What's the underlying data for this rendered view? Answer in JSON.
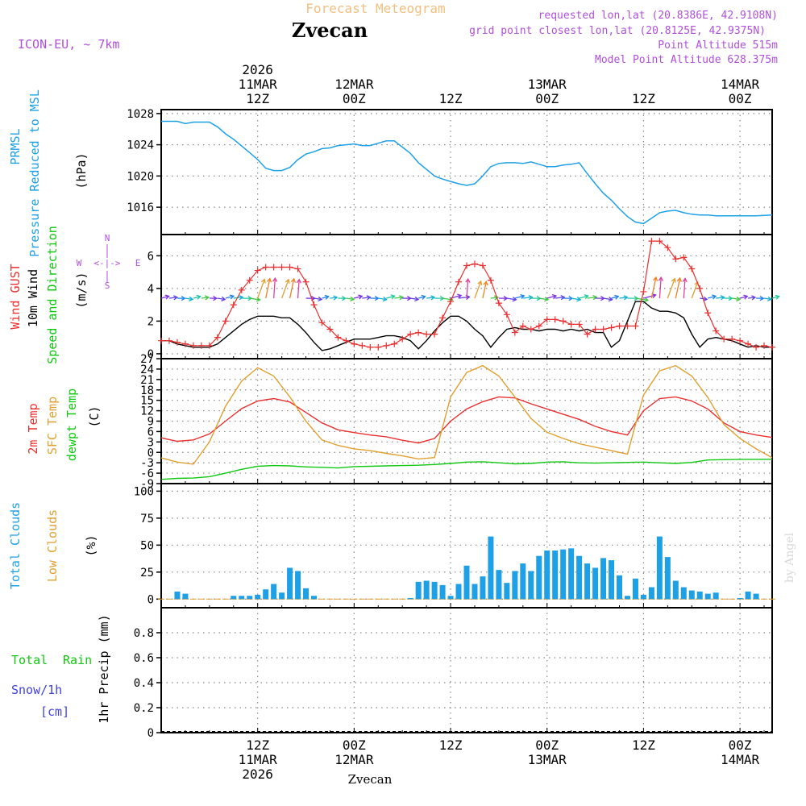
{
  "header": {
    "subtitle": "Forecast Meteogram",
    "location": "Zvecan",
    "model": "ICON-EU, ~ 7km",
    "requested": "requested lon,lat (20.8386E, 42.9108N)",
    "gridpoint": "grid point closest lon,lat (20.8125E, 42.9375N)",
    "point_alt": "Point Altitude 515m",
    "model_alt": "Model Point Altitude 628.375m",
    "credit": "by Angel",
    "footer_name": "Zvecan",
    "colors": {
      "orange": "#f0c080",
      "purple": "#b050d8",
      "blue": "#1ea0e6",
      "red": "#e83030",
      "green": "#10c810",
      "gold": "#e0a030",
      "navy": "#4040e0"
    }
  },
  "time_axis": {
    "top": [
      {
        "t": 12,
        "l1": "2026",
        "l2": "11MAR",
        "l3": "12Z"
      },
      {
        "t": 24,
        "l1": "",
        "l2": "12MAR",
        "l3": "00Z"
      },
      {
        "t": 36,
        "l1": "",
        "l2": "",
        "l3": "12Z"
      },
      {
        "t": 48,
        "l1": "",
        "l2": "13MAR",
        "l3": "00Z"
      },
      {
        "t": 60,
        "l1": "",
        "l2": "",
        "l3": "12Z"
      },
      {
        "t": 72,
        "l1": "",
        "l2": "14MAR",
        "l3": "00Z"
      }
    ],
    "bottom": [
      {
        "t": 12,
        "l1": "12Z",
        "l2": "11MAR",
        "l3": "2026"
      },
      {
        "t": 24,
        "l1": "00Z",
        "l2": "12MAR",
        "l3": ""
      },
      {
        "t": 36,
        "l1": "12Z",
        "l2": "",
        "l3": ""
      },
      {
        "t": 48,
        "l1": "00Z",
        "l2": "13MAR",
        "l3": ""
      },
      {
        "t": 60,
        "l1": "12Z",
        "l2": "",
        "l3": ""
      },
      {
        "t": 72,
        "l1": "00Z",
        "l2": "14MAR",
        "l3": ""
      }
    ]
  },
  "labels": {
    "pressure": [
      "PRMSL",
      "Pressure Reduced to MSL",
      "(hPa)"
    ],
    "wind": [
      "Wind GUST",
      "10m Wind",
      "Speed and Direction",
      "(m/s)"
    ],
    "compass": {
      "n": "N",
      "s": "S",
      "w": "W",
      "e": "E",
      "rose": "<-|->"
    },
    "temp": [
      "2m Temp",
      "SFC Temp",
      "dewpt Temp",
      "(C)"
    ],
    "clouds": [
      "Total Clouds",
      "Low Clouds",
      "(%)"
    ],
    "precip": [
      "Total",
      "Rain",
      "Snow/1h",
      "[cm]",
      "1hr Precip (mm)"
    ]
  },
  "chart_data": [
    {
      "type": "line",
      "title": "PRMSL Pressure Reduced to MSL",
      "ylabel": "hPa",
      "ylim": [
        1012.5,
        1028.5
      ],
      "yticks": [
        "1016",
        "1020",
        "1024",
        "1028"
      ],
      "x_hours": [
        0,
        2,
        3,
        4,
        6,
        7,
        8,
        9,
        11,
        12,
        13,
        14,
        15,
        16,
        17,
        18,
        19,
        20,
        21,
        22,
        23,
        24,
        25,
        26,
        27,
        28,
        29,
        30,
        31,
        32,
        34,
        35,
        36,
        37,
        38,
        39,
        40,
        41,
        42,
        43,
        44,
        45,
        46,
        47,
        48,
        49,
        50,
        51,
        52,
        53,
        54,
        55,
        56,
        57,
        58,
        59,
        60,
        61,
        62,
        63,
        64,
        65,
        66,
        67,
        68,
        69,
        70,
        71,
        72,
        74,
        76
      ],
      "series": [
        {
          "name": "PRMSL",
          "color": "#1ea0e6",
          "values": [
            1027.0,
            1027.0,
            1026.7,
            1026.9,
            1026.9,
            1026.3,
            1025.4,
            1024.7,
            1023.0,
            1022.1,
            1021.0,
            1020.7,
            1020.7,
            1021.1,
            1022.1,
            1022.8,
            1023.1,
            1023.5,
            1023.6,
            1023.9,
            1024.0,
            1024.1,
            1023.9,
            1023.9,
            1024.2,
            1024.5,
            1024.5,
            1023.7,
            1022.9,
            1021.7,
            1020.0,
            1019.6,
            1019.3,
            1019.0,
            1018.8,
            1019.0,
            1020.0,
            1021.2,
            1021.6,
            1021.7,
            1021.7,
            1021.6,
            1021.8,
            1021.5,
            1021.2,
            1021.2,
            1021.4,
            1021.5,
            1021.7,
            1020.3,
            1019.0,
            1017.8,
            1016.9,
            1015.8,
            1014.8,
            1014.1,
            1013.9,
            1014.6,
            1015.3,
            1015.5,
            1015.6,
            1015.3,
            1015.1,
            1015.0,
            1015.0,
            1014.9,
            1014.9,
            1014.9,
            1014.9,
            1014.9,
            1015.0
          ]
        }
      ]
    },
    {
      "type": "line",
      "title": "Wind GUST / 10m Wind Speed and Direction",
      "ylabel": "m/s",
      "ylim": [
        -0.3,
        7.3
      ],
      "yticks": [
        "0",
        "2",
        "4",
        "6"
      ],
      "x_hours": [
        0,
        1,
        2,
        3,
        4,
        5,
        6,
        7,
        8,
        9,
        10,
        11,
        12,
        13,
        14,
        15,
        16,
        17,
        18,
        19,
        20,
        21,
        22,
        23,
        24,
        25,
        26,
        27,
        28,
        29,
        30,
        31,
        32,
        33,
        34,
        35,
        36,
        37,
        38,
        39,
        40,
        41,
        42,
        43,
        44,
        45,
        46,
        47,
        48,
        49,
        50,
        51,
        52,
        53,
        54,
        55,
        56,
        57,
        58,
        59,
        60,
        61,
        62,
        63,
        64,
        65,
        66,
        67,
        68,
        69,
        70,
        71,
        72,
        73,
        74,
        75,
        76
      ],
      "series": [
        {
          "name": "Wind GUST",
          "color": "#e83030",
          "values": [
            0.8,
            0.8,
            0.7,
            0.6,
            0.5,
            0.5,
            0.5,
            1.0,
            2.0,
            3.0,
            3.9,
            4.5,
            5.1,
            5.3,
            5.3,
            5.3,
            5.3,
            5.2,
            4.4,
            3.0,
            1.9,
            1.5,
            1.0,
            0.8,
            0.6,
            0.5,
            0.4,
            0.4,
            0.5,
            0.6,
            0.9,
            1.2,
            1.3,
            1.2,
            1.2,
            2.2,
            3.2,
            4.4,
            5.4,
            5.5,
            5.4,
            4.5,
            3.1,
            2.4,
            1.3,
            1.7,
            1.5,
            1.7,
            2.1,
            2.1,
            2.0,
            1.8,
            1.8,
            1.2,
            1.5,
            1.5,
            1.6,
            1.7,
            1.7,
            1.7,
            3.8,
            6.9,
            6.9,
            6.5,
            5.8,
            5.9,
            5.2,
            4.0,
            2.5,
            1.4,
            0.9,
            0.9,
            0.8,
            0.6,
            0.4,
            0.5,
            0.4
          ]
        },
        {
          "name": "10m Wind",
          "color": "#000000",
          "values": [
            0.8,
            0.8,
            0.6,
            0.5,
            0.4,
            0.4,
            0.4,
            0.6,
            1.0,
            1.4,
            1.8,
            2.1,
            2.3,
            2.3,
            2.3,
            2.2,
            2.2,
            1.8,
            1.3,
            0.7,
            0.2,
            0.3,
            0.5,
            0.7,
            0.9,
            0.9,
            0.9,
            1.0,
            1.1,
            1.1,
            1.0,
            0.8,
            0.3,
            0.8,
            1.4,
            1.9,
            2.3,
            2.3,
            2.0,
            1.5,
            1.1,
            0.4,
            1.0,
            1.5,
            1.6,
            1.5,
            1.5,
            1.4,
            1.5,
            1.5,
            1.4,
            1.5,
            1.4,
            1.5,
            1.3,
            1.3,
            0.4,
            0.8,
            2.0,
            3.2,
            3.2,
            2.8,
            2.6,
            2.6,
            2.5,
            2.2,
            1.2,
            0.4,
            0.9,
            1.0,
            0.9,
            0.8,
            0.6,
            0.4,
            0.5,
            0.4,
            0.4
          ]
        }
      ]
    },
    {
      "type": "line",
      "title": "2m Temp / SFC Temp / dewpt Temp",
      "ylabel": "C",
      "ylim": [
        -9,
        27
      ],
      "yticks": [
        "-9",
        "-6",
        "-3",
        "0",
        "3",
        "6",
        "9",
        "12",
        "15",
        "18",
        "21",
        "24",
        "27"
      ],
      "x_hours": [
        0,
        2,
        4,
        6,
        8,
        10,
        12,
        14,
        16,
        18,
        20,
        22,
        24,
        26,
        28,
        30,
        32,
        34,
        36,
        38,
        40,
        42,
        44,
        46,
        48,
        50,
        52,
        54,
        56,
        58,
        60,
        62,
        64,
        66,
        68,
        70,
        72,
        74,
        76
      ],
      "series": [
        {
          "name": "2m Temp",
          "color": "#e83030",
          "values": [
            4.2,
            3.2,
            3.6,
            5.3,
            9.0,
            12.6,
            14.8,
            15.5,
            14.5,
            11.5,
            8.5,
            6.5,
            5.7,
            5.0,
            4.5,
            3.5,
            2.7,
            4.0,
            9.0,
            12.5,
            14.6,
            16.0,
            15.7,
            14.0,
            12.5,
            11.0,
            9.5,
            7.5,
            6.0,
            5.0,
            12.0,
            15.5,
            16.0,
            14.8,
            12.5,
            8.5,
            6.0,
            5.0,
            4.3
          ]
        },
        {
          "name": "SFC Temp",
          "color": "#e0a030",
          "values": [
            -1.6,
            -2.8,
            -3.4,
            3.0,
            13.3,
            20.5,
            24.4,
            22.0,
            16.0,
            9.0,
            3.6,
            2.0,
            1.0,
            0.5,
            -0.3,
            -1.0,
            -1.9,
            -1.5,
            16.0,
            23.0,
            25.0,
            22.0,
            16.0,
            9.8,
            5.8,
            4.0,
            2.5,
            1.5,
            0.5,
            -0.5,
            16.5,
            23.5,
            25.0,
            22.0,
            15.8,
            8.0,
            4.0,
            1.0,
            -1.5
          ]
        },
        {
          "name": "dewpt Temp",
          "color": "#10c810",
          "values": [
            -7.8,
            -7.5,
            -7.4,
            -7.0,
            -6.0,
            -4.9,
            -4.0,
            -3.8,
            -3.9,
            -4.2,
            -4.3,
            -4.5,
            -4.1,
            -4.0,
            -3.9,
            -3.8,
            -3.7,
            -3.5,
            -3.2,
            -2.8,
            -2.7,
            -3.0,
            -3.3,
            -3.2,
            -2.8,
            -2.7,
            -3.0,
            -3.1,
            -3.0,
            -2.9,
            -2.8,
            -3.0,
            -3.2,
            -2.9,
            -2.2,
            -2.1,
            -2.0,
            -2.0,
            -2.0
          ]
        }
      ]
    },
    {
      "type": "bar",
      "title": "Total Clouds / Low Clouds",
      "ylabel": "%",
      "ylim": [
        -8,
        107
      ],
      "yticks": [
        "0",
        "25",
        "50",
        "75",
        "100"
      ],
      "x_hours": [
        0,
        1,
        2,
        3,
        4,
        5,
        6,
        7,
        8,
        9,
        10,
        11,
        12,
        13,
        14,
        15,
        16,
        17,
        18,
        19,
        20,
        21,
        22,
        23,
        24,
        25,
        26,
        27,
        28,
        29,
        30,
        31,
        32,
        33,
        34,
        35,
        36,
        37,
        38,
        39,
        40,
        41,
        42,
        43,
        44,
        45,
        46,
        47,
        48,
        49,
        50,
        51,
        52,
        53,
        54,
        55,
        56,
        57,
        58,
        59,
        60,
        61,
        62,
        63,
        64,
        65,
        66,
        67,
        68,
        69,
        70,
        71,
        72,
        73,
        74,
        75,
        76
      ],
      "series": [
        {
          "name": "Total Clouds",
          "color": "#1ea0e6",
          "values": [
            0,
            0,
            7,
            5,
            0,
            0,
            0,
            0,
            0,
            3,
            3,
            3,
            4,
            9,
            14,
            6,
            29,
            26,
            10,
            3,
            0,
            0,
            0,
            0,
            0,
            0,
            0,
            0,
            0,
            0,
            0,
            1,
            16,
            17,
            16,
            13,
            3,
            14,
            31,
            14,
            21,
            58,
            27,
            15,
            26,
            33,
            26,
            40,
            45,
            45,
            46,
            47,
            40,
            33,
            29,
            38,
            36,
            22,
            3,
            19,
            4,
            11,
            58,
            39,
            17,
            11,
            8,
            7,
            5,
            6,
            0,
            0,
            1,
            7,
            5,
            0,
            0
          ]
        }
      ]
    },
    {
      "type": "bar",
      "title": "1hr Precip",
      "ylabel": "mm",
      "ylim": [
        0,
        1.0
      ],
      "yticks": [
        "0",
        "0.2",
        "0.4",
        "0.6",
        "0.8"
      ],
      "series": [
        {
          "name": "Total Rain",
          "color": "#10c810",
          "values": []
        }
      ]
    }
  ]
}
